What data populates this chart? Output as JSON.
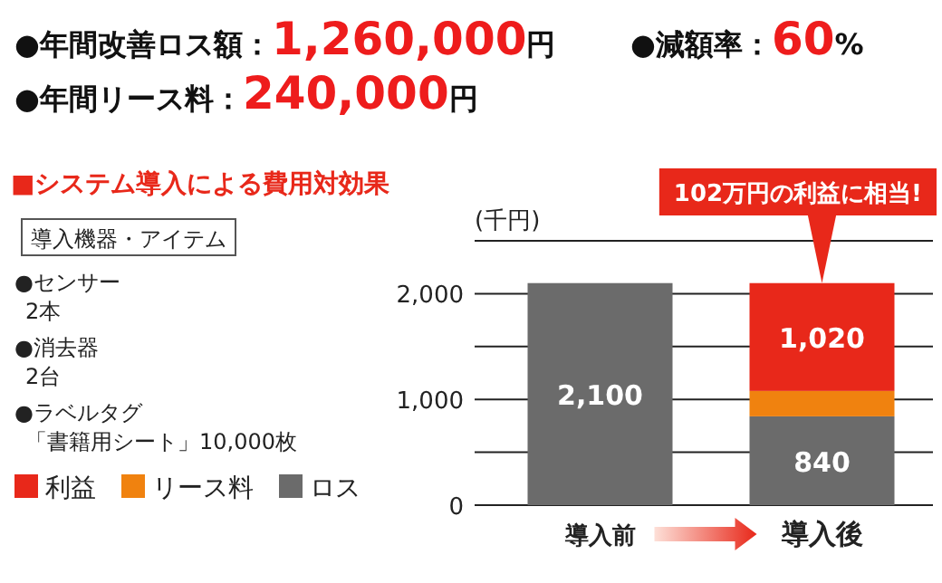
{
  "chart_data": {
    "type": "bar",
    "subtitle": "■システム導入による費用対効果",
    "ylabel": "(千円)",
    "categories": [
      "導入前",
      "導入後"
    ],
    "stacked": true,
    "ylim": [
      0,
      2500
    ],
    "yticks": [
      0,
      {
        "value": 500,
        "label": null
      },
      {
        "value": 1000,
        "label": "1,000"
      },
      {
        "value": 1500,
        "label": null
      },
      {
        "value": 2000,
        "label": "2,000"
      },
      {
        "value": 2500,
        "label": null
      }
    ],
    "grid": "y",
    "legend": "bottom left",
    "series": [
      {
        "name": "ロス",
        "color": "#6b6b6b",
        "values": [
          2100,
          840
        ],
        "value_labels": [
          "2,100",
          "840"
        ]
      },
      {
        "name": "リース料",
        "color": "#f0820f",
        "values": [
          0,
          240
        ],
        "value_labels": [
          null,
          null
        ]
      },
      {
        "name": "利益",
        "color": "#e8281a",
        "values": [
          0,
          1020
        ],
        "value_labels": [
          null,
          "1,020"
        ]
      }
    ],
    "annotations": [
      "●年間改善ロス額：1,260,000円",
      "●減額率：60%",
      "●年間リース料：240,000円",
      "導入機器・アイテム",
      "●センサー 2本",
      "●消去器 2台",
      "●ラベルタグ「書籍用シート」10,000枚",
      {
        "text": "102万円の利益に相当!",
        "x": "導入後",
        "y": 2100
      }
    ]
  }
}
